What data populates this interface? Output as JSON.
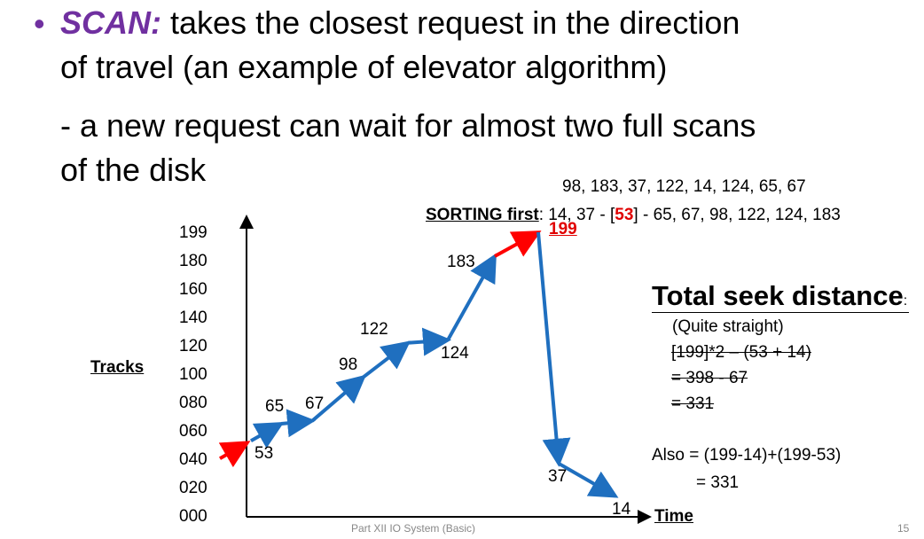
{
  "slide": {
    "bullet_glyph": "•",
    "bullet_term": "SCAN:",
    "bullet_line1": "takes the closest request in the direction",
    "bullet_line2": "of travel (an example of elevator algorithm)",
    "sub_line1": "- a new request can wait for almost two full scans",
    "sub_line2": "of the disk",
    "request_queue": "98, 183, 37, 122, 14, 124, 65, 67",
    "sorting_label": "SORTING first",
    "sorting_prefix": ": 14, 37 - [",
    "sorting_head": "53",
    "sorting_suffix": "] - 65, 67, 98, 122, 124, 183",
    "total_title": "Total seek distance",
    "total_colon": ":",
    "quite_straight": "(Quite straight)",
    "strike_line1": "[199]*2 – (53 + 14)",
    "strike_line2": "= 398 - 67",
    "strike_line3": "= 331",
    "also_line1": "Also = (199-14)+(199-53)",
    "also_line2": "= 331",
    "footer_title": "Part XII IO System (Basic)",
    "page_number": "15"
  },
  "chart_data": {
    "type": "line",
    "ylabel": "Tracks",
    "xlabel": "Time",
    "yticks": [
      "199",
      "180",
      "160",
      "140",
      "120",
      "100",
      "080",
      "060",
      "040",
      "020",
      "000"
    ],
    "series": [
      {
        "values": [
          53,
          65,
          67,
          98,
          122,
          124,
          183,
          199,
          37,
          14
        ]
      }
    ],
    "point_labels": [
      "53",
      "65",
      "67",
      "98",
      "122",
      "124",
      "183",
      "199",
      "37",
      "14"
    ],
    "colors": {
      "path": "#1f6fbf",
      "highlight": "#ff0000"
    }
  }
}
